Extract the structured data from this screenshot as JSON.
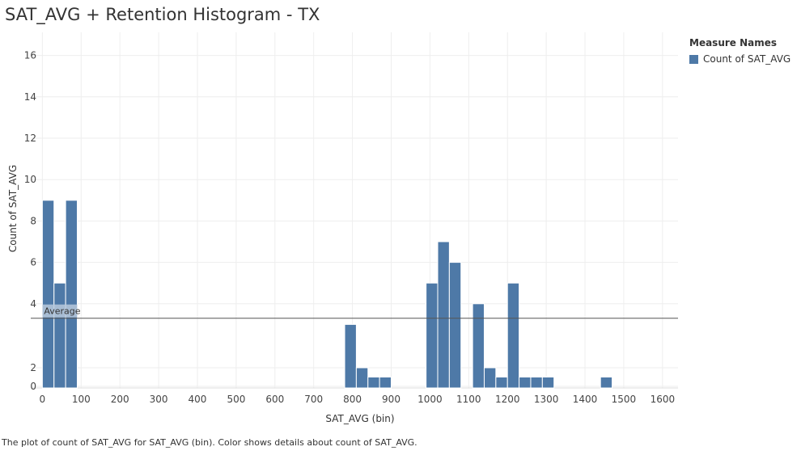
{
  "title": "SAT_AVG + Retention Histogram - TX",
  "caption": "The plot of count of SAT_AVG for SAT_AVG (bin).  Color shows details about count of SAT_AVG.",
  "legend": {
    "title": "Measure Names",
    "items": [
      {
        "label": "Count of SAT_AVG",
        "color": "#4e79a7"
      }
    ]
  },
  "colors": {
    "bar": "#4e79a7",
    "grid": "#eeeeee",
    "reference_line": "#555555",
    "average_label_bg": "#b9c9dc"
  },
  "chart_data": {
    "type": "bar",
    "title": "SAT_AVG + Retention Histogram - TX",
    "xlabel": "SAT_AVG (bin)",
    "ylabel": "Count of SAT_AVG",
    "bin_size": 30,
    "x": [
      0,
      30,
      60,
      780,
      810,
      840,
      870,
      990,
      1020,
      1050,
      1110,
      1140,
      1170,
      1200,
      1230,
      1260,
      1290,
      1440
    ],
    "values": [
      9,
      5,
      9,
      3,
      2,
      1,
      1,
      5,
      7,
      6,
      4,
      2,
      1,
      5,
      1,
      1,
      1,
      1
    ],
    "series": [
      {
        "name": "Count of SAT_AVG",
        "color": "#4e79a7"
      }
    ],
    "xlim": [
      -30,
      1640
    ],
    "ylim": [
      0,
      17
    ],
    "x_ticks": [
      "0",
      "100",
      "200",
      "300",
      "400",
      "500",
      "600",
      "700",
      "800",
      "900",
      "1000",
      "1100",
      "1200",
      "1300",
      "1400",
      "1500",
      "1600"
    ],
    "y_ticks": [
      "0",
      "2",
      "4",
      "6",
      "8",
      "10",
      "12",
      "14",
      "16"
    ],
    "reference_line": {
      "label": "Average",
      "value": 3.3
    },
    "grid": true,
    "legend_position": "top-right"
  }
}
